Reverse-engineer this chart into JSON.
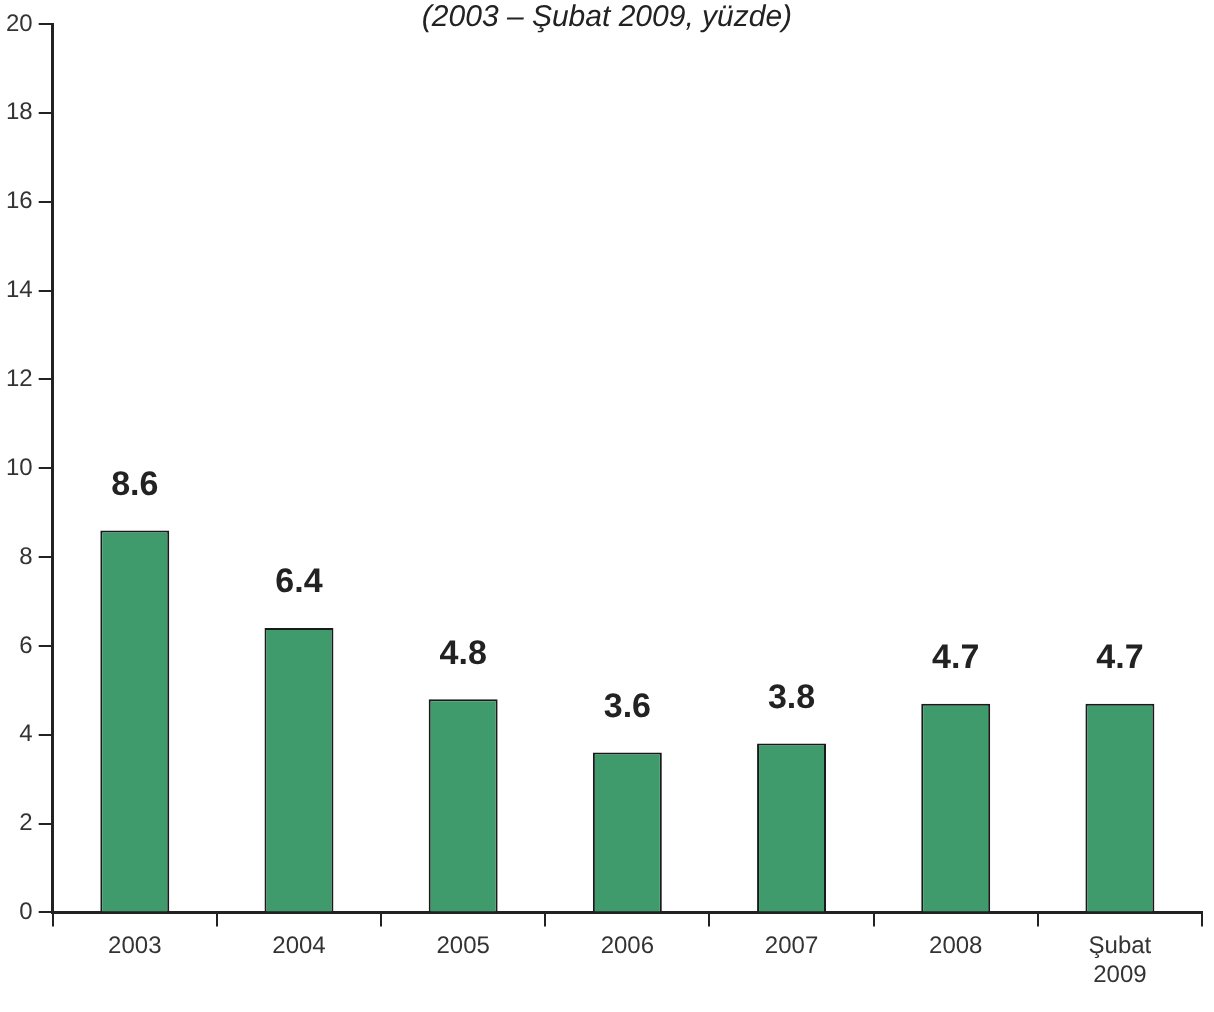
{
  "chart_data": {
    "type": "bar",
    "subtitle": "(2003 – Şubat 2009, yüzde)",
    "categories": [
      "2003",
      "2004",
      "2005",
      "2006",
      "2007",
      "2008",
      "Şubat 2009"
    ],
    "values": [
      8.6,
      6.4,
      4.8,
      3.6,
      3.8,
      4.7,
      4.7
    ],
    "color": "#3f9a6c",
    "ylim": [
      0,
      20
    ],
    "yticks": [
      0,
      2,
      4,
      6,
      8,
      10,
      12,
      14,
      16,
      18,
      20
    ],
    "grid": false,
    "legend": false,
    "data_labels": true
  }
}
